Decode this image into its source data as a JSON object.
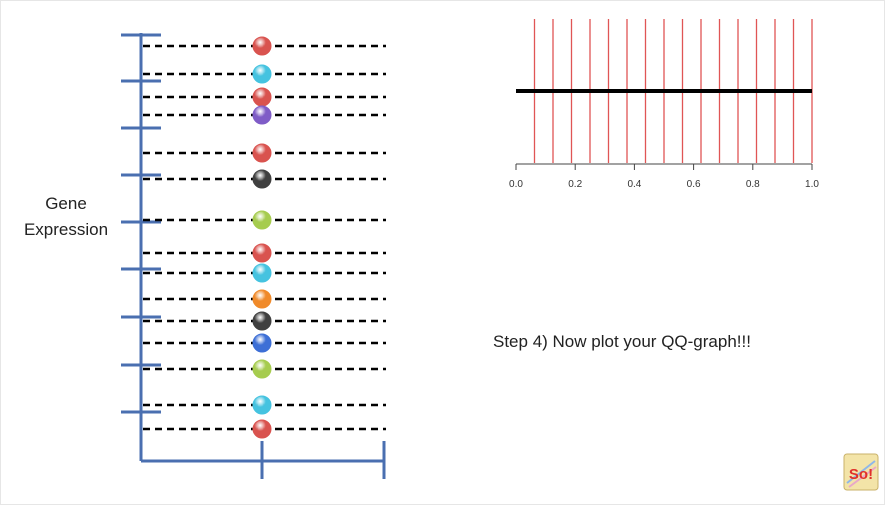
{
  "y_axis_label": [
    "Gene",
    "Expression"
  ],
  "step_text": "Step 4) Now plot your QQ-graph!!!",
  "logo_text": "So!",
  "colors": {
    "axis_blue": "#4a6fb0",
    "red": "#d9534f",
    "cyan": "#45c3e0",
    "purple": "#7f5cc7",
    "black": "#404040",
    "green": "#a6cc4f",
    "orange": "#f08a2a",
    "blue": "#3d6fd6",
    "quantile_red": "#e05555"
  },
  "gene_points": [
    {
      "color": "red"
    },
    {
      "color": "cyan"
    },
    {
      "color": "red"
    },
    {
      "color": "purple"
    },
    {
      "color": "red"
    },
    {
      "color": "black"
    },
    {
      "color": "green"
    },
    {
      "color": "red"
    },
    {
      "color": "cyan"
    },
    {
      "color": "orange"
    },
    {
      "color": "black"
    },
    {
      "color": "blue"
    },
    {
      "color": "green"
    },
    {
      "color": "cyan"
    },
    {
      "color": "red"
    }
  ],
  "chart_data": {
    "type": "line",
    "xlim": [
      0.0,
      1.0
    ],
    "x_ticks": [
      "0.0",
      "0.2",
      "0.4",
      "0.6",
      "0.8",
      "1.0"
    ],
    "quantile_lines_x": [
      0.0625,
      0.125,
      0.1875,
      0.25,
      0.3125,
      0.375,
      0.4375,
      0.5,
      0.5625,
      0.625,
      0.6875,
      0.75,
      0.8125,
      0.875,
      0.9375,
      1.0
    ]
  }
}
